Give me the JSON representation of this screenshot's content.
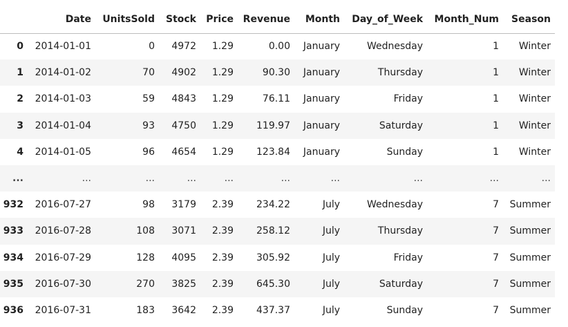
{
  "table": {
    "columns": [
      "",
      "Date",
      "UnitsSold",
      "Stock",
      "Price",
      "Revenue",
      "Month",
      "Day_of_Week",
      "Month_Num",
      "Season"
    ],
    "rows": [
      [
        "0",
        "2014-01-01",
        "0",
        "4972",
        "1.29",
        "0.00",
        "January",
        "Wednesday",
        "1",
        "Winter"
      ],
      [
        "1",
        "2014-01-02",
        "70",
        "4902",
        "1.29",
        "90.30",
        "January",
        "Thursday",
        "1",
        "Winter"
      ],
      [
        "2",
        "2014-01-03",
        "59",
        "4843",
        "1.29",
        "76.11",
        "January",
        "Friday",
        "1",
        "Winter"
      ],
      [
        "3",
        "2014-01-04",
        "93",
        "4750",
        "1.29",
        "119.97",
        "January",
        "Saturday",
        "1",
        "Winter"
      ],
      [
        "4",
        "2014-01-05",
        "96",
        "4654",
        "1.29",
        "123.84",
        "January",
        "Sunday",
        "1",
        "Winter"
      ],
      [
        "...",
        "...",
        "...",
        "...",
        "...",
        "...",
        "...",
        "...",
        "...",
        "..."
      ],
      [
        "932",
        "2016-07-27",
        "98",
        "3179",
        "2.39",
        "234.22",
        "July",
        "Wednesday",
        "7",
        "Summer"
      ],
      [
        "933",
        "2016-07-28",
        "108",
        "3071",
        "2.39",
        "258.12",
        "July",
        "Thursday",
        "7",
        "Summer"
      ],
      [
        "934",
        "2016-07-29",
        "128",
        "4095",
        "2.39",
        "305.92",
        "July",
        "Friday",
        "7",
        "Summer"
      ],
      [
        "935",
        "2016-07-30",
        "270",
        "3825",
        "2.39",
        "645.30",
        "July",
        "Saturday",
        "7",
        "Summer"
      ],
      [
        "936",
        "2016-07-31",
        "183",
        "3642",
        "2.39",
        "437.37",
        "July",
        "Sunday",
        "7",
        "Summer"
      ]
    ]
  }
}
